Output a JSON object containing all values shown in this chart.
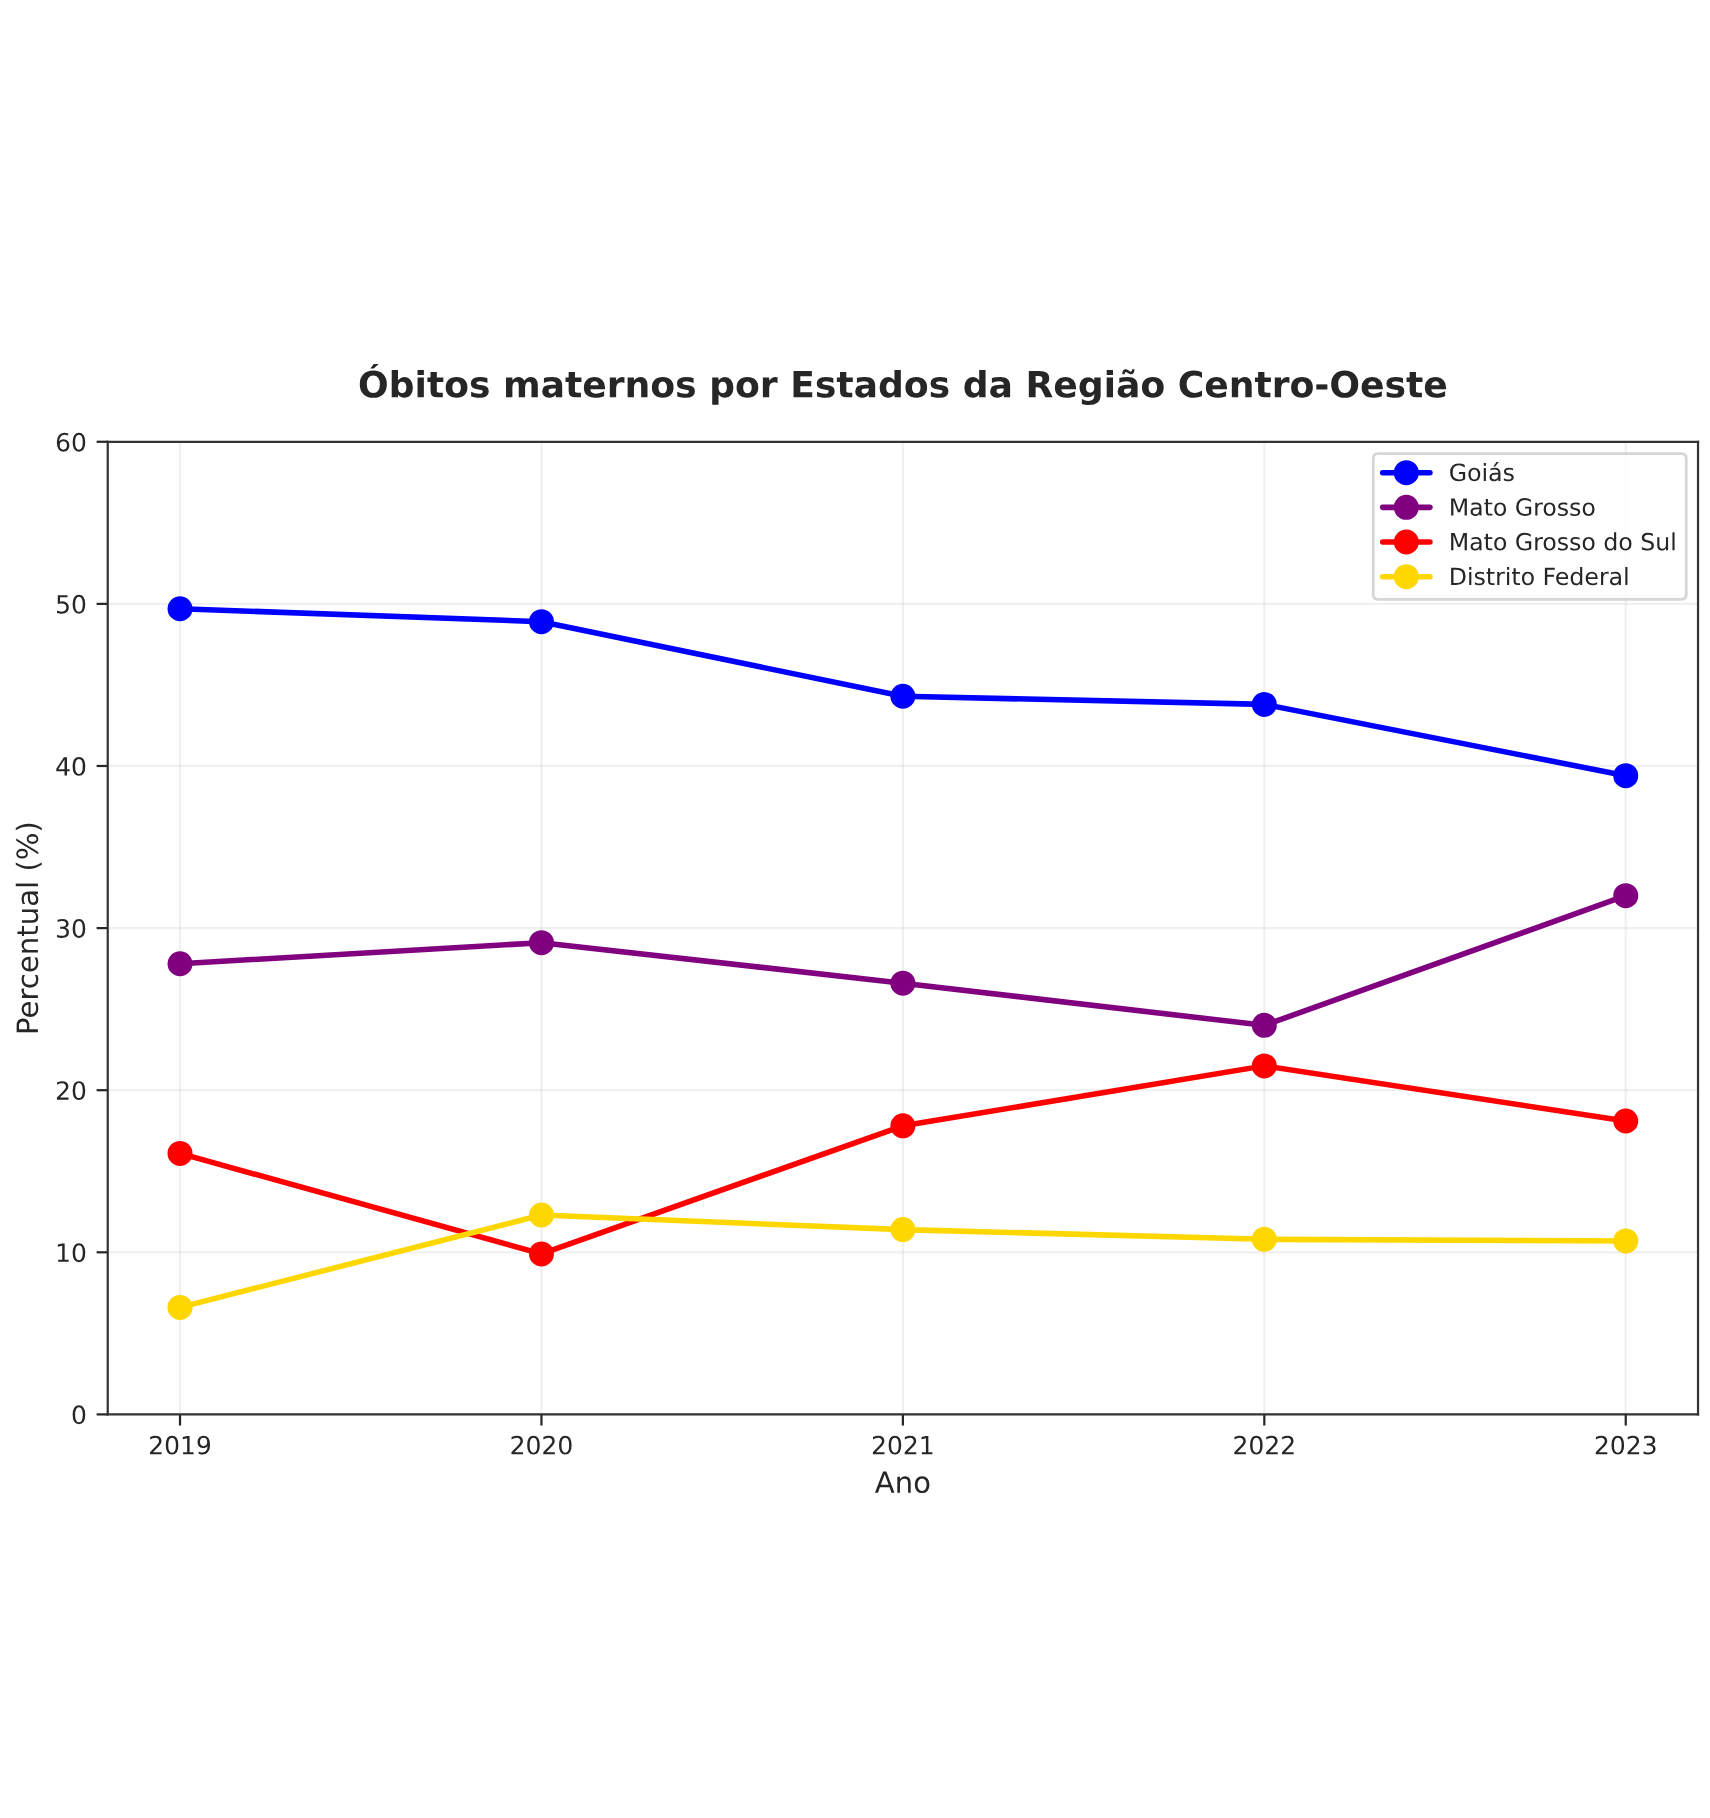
{
  "chart_data": {
    "type": "line",
    "title": "Óbitos maternos por Estados da Região Centro-Oeste",
    "xlabel": "Ano",
    "ylabel": "Percentual (%)",
    "x": [
      2019,
      2020,
      2021,
      2022,
      2023
    ],
    "series": [
      {
        "name": "Goiás",
        "color": "#0000ff",
        "values": [
          49.7,
          48.9,
          44.3,
          43.8,
          39.4
        ]
      },
      {
        "name": "Mato Grosso",
        "color": "#800080",
        "values": [
          27.8,
          29.1,
          26.6,
          24.0,
          32.0
        ]
      },
      {
        "name": "Mato Grosso do Sul",
        "color": "#ff0000",
        "values": [
          16.1,
          9.9,
          17.8,
          21.5,
          18.1
        ]
      },
      {
        "name": "Distrito Federal",
        "color": "#ffd700",
        "values": [
          6.6,
          12.3,
          11.4,
          10.8,
          10.7
        ]
      }
    ],
    "xlim": [
      2018.8,
      2023.2
    ],
    "xticks": [
      2019,
      2020,
      2021,
      2022,
      2023
    ],
    "ylim": [
      0,
      60
    ],
    "yticks": [
      0,
      10,
      20,
      30,
      40,
      50,
      60
    ],
    "grid": true,
    "legend": "top right",
    "marker": "circle",
    "line_style": "solid"
  }
}
